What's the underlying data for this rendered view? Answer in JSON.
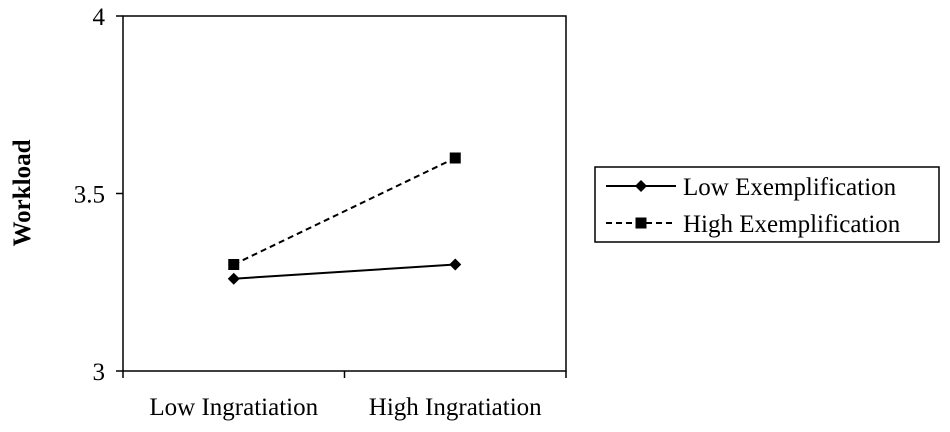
{
  "chart_data": {
    "type": "line",
    "title": "",
    "xlabel": "",
    "ylabel": "Workload",
    "categories": [
      "Low Ingratiation",
      "High Ingratiation"
    ],
    "ylim": [
      3,
      4
    ],
    "yticks": [
      3,
      3.5,
      4
    ],
    "ytick_labels": [
      "3",
      "3.5",
      "4"
    ],
    "grid": false,
    "legend_position": "right",
    "series": [
      {
        "name": "Low Exemplification",
        "values": [
          3.26,
          3.3
        ],
        "line_style": "solid",
        "marker": "diamond",
        "color": "#000000"
      },
      {
        "name": "High Exemplification",
        "values": [
          3.3,
          3.6
        ],
        "line_style": "dashed",
        "marker": "square",
        "color": "#000000"
      }
    ]
  }
}
